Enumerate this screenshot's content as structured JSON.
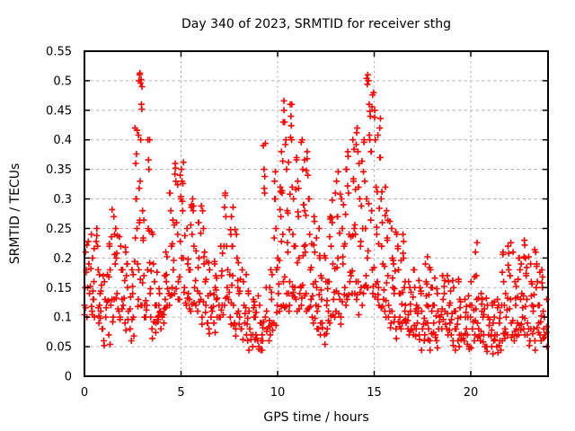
{
  "page": {
    "background_color": "#ffffff",
    "text_color": "#000000"
  },
  "chart_data": {
    "type": "scatter",
    "title": "Day 340 of 2023, SRMTID for receiver sthg",
    "xlabel": "GPS time / hours",
    "ylabel": "SRMTID / TECUs",
    "xlim": [
      0,
      24
    ],
    "ylim": [
      0,
      0.55
    ],
    "xticks": [
      0,
      5,
      10,
      15,
      20
    ],
    "xtick_labels": [
      "0",
      "5",
      "10",
      "15",
      "20"
    ],
    "yticks": [
      0,
      0.05,
      0.1,
      0.15,
      0.2,
      0.25,
      0.3,
      0.35,
      0.4,
      0.45,
      0.5,
      0.55
    ],
    "ytick_labels": [
      "0",
      "0.05",
      "0.1",
      "0.15",
      "0.2",
      "0.25",
      "0.3",
      "0.35",
      "0.4",
      "0.45",
      "0.5",
      "0.55"
    ],
    "grid": true,
    "grid_style": "dashed",
    "grid_color": "#b3b3b3",
    "border_color": "#000000",
    "legend": "none",
    "marker": "plus",
    "marker_color": "#ff0000",
    "marker_size_px": 7,
    "x_jitter_width": 0.2,
    "columns": [
      {
        "x": 0.0,
        "ys": [
          0.12,
          0.15,
          0.1,
          0.18,
          0.21
        ]
      },
      {
        "x": 0.2,
        "ys": [
          0.14,
          0.19,
          0.11,
          0.24
        ]
      },
      {
        "x": 0.4,
        "ys": [
          0.1,
          0.16,
          0.13,
          0.2
        ]
      },
      {
        "x": 0.6,
        "ys": [
          0.12,
          0.09,
          0.18,
          0.22,
          0.25
        ]
      },
      {
        "x": 0.8,
        "ys": [
          0.11,
          0.14,
          0.17,
          0.08
        ]
      },
      {
        "x": 1.0,
        "ys": [
          0.1,
          0.13,
          0.16,
          0.06
        ]
      },
      {
        "x": 1.2,
        "ys": [
          0.12,
          0.18,
          0.22,
          0.07
        ]
      },
      {
        "x": 1.4,
        "ys": [
          0.13,
          0.19,
          0.24,
          0.27,
          0.1
        ]
      },
      {
        "x": 1.6,
        "ys": [
          0.14,
          0.2,
          0.25,
          0.11
        ]
      },
      {
        "x": 1.8,
        "ys": [
          0.13,
          0.18,
          0.22,
          0.1
        ]
      },
      {
        "x": 2.0,
        "ys": [
          0.12,
          0.17,
          0.21,
          0.09
        ]
      },
      {
        "x": 2.2,
        "ys": [
          0.11,
          0.15,
          0.19,
          0.08
        ]
      },
      {
        "x": 2.4,
        "ys": [
          0.1,
          0.14,
          0.18,
          0.06
        ]
      },
      {
        "x": 2.6,
        "ys": [
          0.13,
          0.19,
          0.25,
          0.3,
          0.36,
          0.42
        ]
      },
      {
        "x": 2.8,
        "ys": [
          0.51,
          0.5,
          0.49,
          0.46,
          0.4,
          0.33,
          0.26,
          0.18,
          0.12
        ]
      },
      {
        "x": 3.0,
        "ys": [
          0.12,
          0.17,
          0.23,
          0.28,
          0.1
        ]
      },
      {
        "x": 3.2,
        "ys": [
          0.4,
          0.35,
          0.25,
          0.18,
          0.12
        ]
      },
      {
        "x": 3.4,
        "ys": [
          0.1,
          0.14,
          0.19,
          0.24,
          0.08
        ]
      },
      {
        "x": 3.6,
        "ys": [
          0.09,
          0.12,
          0.16,
          0.1
        ]
      },
      {
        "x": 3.8,
        "ys": [
          0.08,
          0.11,
          0.14,
          0.12
        ]
      },
      {
        "x": 4.0,
        "ys": [
          0.1,
          0.13,
          0.17,
          0.09
        ]
      },
      {
        "x": 4.2,
        "ys": [
          0.12,
          0.16,
          0.21,
          0.14
        ]
      },
      {
        "x": 4.4,
        "ys": [
          0.15,
          0.22,
          0.28,
          0.31,
          0.12
        ]
      },
      {
        "x": 4.6,
        "ys": [
          0.18,
          0.26,
          0.33,
          0.36,
          0.14
        ]
      },
      {
        "x": 4.8,
        "ys": [
          0.16,
          0.24,
          0.3,
          0.34,
          0.13
        ]
      },
      {
        "x": 5.0,
        "ys": [
          0.2,
          0.28,
          0.33,
          0.35,
          0.15
        ]
      },
      {
        "x": 5.2,
        "ys": [
          0.14,
          0.19,
          0.25,
          0.12
        ]
      },
      {
        "x": 5.4,
        "ys": [
          0.13,
          0.18,
          0.24,
          0.29,
          0.11
        ]
      },
      {
        "x": 5.6,
        "ys": [
          0.15,
          0.22,
          0.28,
          0.3,
          0.12
        ]
      },
      {
        "x": 5.8,
        "ys": [
          0.14,
          0.2,
          0.26,
          0.11
        ]
      },
      {
        "x": 6.0,
        "ys": [
          0.13,
          0.19,
          0.25,
          0.28,
          0.1
        ]
      },
      {
        "x": 6.2,
        "ys": [
          0.12,
          0.16,
          0.21,
          0.09
        ]
      },
      {
        "x": 6.4,
        "ys": [
          0.1,
          0.14,
          0.18,
          0.08
        ]
      },
      {
        "x": 6.6,
        "ys": [
          0.11,
          0.15,
          0.19,
          0.09
        ]
      },
      {
        "x": 6.8,
        "ys": [
          0.1,
          0.13,
          0.17,
          0.12
        ]
      },
      {
        "x": 7.0,
        "ys": [
          0.12,
          0.17,
          0.22,
          0.1
        ]
      },
      {
        "x": 7.2,
        "ys": [
          0.15,
          0.22,
          0.27,
          0.31,
          0.12
        ]
      },
      {
        "x": 7.4,
        "ys": [
          0.13,
          0.18,
          0.24,
          0.1
        ]
      },
      {
        "x": 7.6,
        "ys": [
          0.12,
          0.17,
          0.22,
          0.27,
          0.09
        ]
      },
      {
        "x": 7.8,
        "ys": [
          0.11,
          0.15,
          0.2,
          0.24,
          0.08
        ]
      },
      {
        "x": 8.0,
        "ys": [
          0.1,
          0.14,
          0.18,
          0.08
        ]
      },
      {
        "x": 8.2,
        "ys": [
          0.09,
          0.12,
          0.16,
          0.07
        ]
      },
      {
        "x": 8.4,
        "ys": [
          0.08,
          0.11,
          0.14,
          0.06
        ]
      },
      {
        "x": 8.6,
        "ys": [
          0.07,
          0.1,
          0.13,
          0.05
        ]
      },
      {
        "x": 8.8,
        "ys": [
          0.07,
          0.1,
          0.12,
          0.06
        ]
      },
      {
        "x": 9.0,
        "ys": [
          0.06,
          0.09,
          0.12,
          0.05
        ]
      },
      {
        "x": 9.2,
        "ys": [
          0.07,
          0.1,
          0.31,
          0.35,
          0.39,
          0.06
        ]
      },
      {
        "x": 9.4,
        "ys": [
          0.08,
          0.11,
          0.15,
          0.06
        ]
      },
      {
        "x": 9.6,
        "ys": [
          0.09,
          0.13,
          0.18,
          0.07
        ]
      },
      {
        "x": 9.8,
        "ys": [
          0.12,
          0.18,
          0.25,
          0.3,
          0.33,
          0.09
        ]
      },
      {
        "x": 10.0,
        "ys": [
          0.14,
          0.2,
          0.27,
          0.32,
          0.11
        ]
      },
      {
        "x": 10.2,
        "ys": [
          0.16,
          0.24,
          0.31,
          0.38,
          0.43,
          0.45,
          0.12
        ]
      },
      {
        "x": 10.4,
        "ys": [
          0.14,
          0.21,
          0.28,
          0.35,
          0.4,
          0.11
        ]
      },
      {
        "x": 10.6,
        "ys": [
          0.16,
          0.24,
          0.32,
          0.4,
          0.44,
          0.46,
          0.12
        ]
      },
      {
        "x": 10.8,
        "ys": [
          0.15,
          0.22,
          0.3,
          0.37,
          0.13
        ]
      },
      {
        "x": 11.0,
        "ys": [
          0.14,
          0.2,
          0.27,
          0.33,
          0.11
        ]
      },
      {
        "x": 11.2,
        "ys": [
          0.15,
          0.22,
          0.29,
          0.35,
          0.4,
          0.12
        ]
      },
      {
        "x": 11.4,
        "ys": [
          0.14,
          0.21,
          0.28,
          0.34,
          0.38,
          0.11
        ]
      },
      {
        "x": 11.6,
        "ys": [
          0.13,
          0.18,
          0.24,
          0.3,
          0.1
        ]
      },
      {
        "x": 11.8,
        "ys": [
          0.12,
          0.16,
          0.21,
          0.27,
          0.09
        ]
      },
      {
        "x": 12.0,
        "ys": [
          0.11,
          0.15,
          0.2,
          0.25,
          0.08
        ]
      },
      {
        "x": 12.2,
        "ys": [
          0.09,
          0.13,
          0.17,
          0.07
        ]
      },
      {
        "x": 12.4,
        "ys": [
          0.08,
          0.12,
          0.16,
          0.2,
          0.07
        ]
      },
      {
        "x": 12.6,
        "ys": [
          0.11,
          0.16,
          0.22,
          0.27,
          0.09
        ]
      },
      {
        "x": 12.8,
        "ys": [
          0.13,
          0.19,
          0.26,
          0.31,
          0.1
        ]
      },
      {
        "x": 13.0,
        "ys": [
          0.14,
          0.2,
          0.27,
          0.33,
          0.11
        ]
      },
      {
        "x": 13.2,
        "ys": [
          0.13,
          0.19,
          0.25,
          0.3,
          0.1
        ]
      },
      {
        "x": 13.4,
        "ys": [
          0.15,
          0.22,
          0.29,
          0.35,
          0.12
        ]
      },
      {
        "x": 13.6,
        "ys": [
          0.16,
          0.24,
          0.31,
          0.38,
          0.13
        ]
      },
      {
        "x": 13.8,
        "ys": [
          0.17,
          0.25,
          0.33,
          0.4,
          0.14
        ]
      },
      {
        "x": 14.0,
        "ys": [
          0.16,
          0.24,
          0.32,
          0.38,
          0.42,
          0.13
        ]
      },
      {
        "x": 14.2,
        "ys": [
          0.15,
          0.22,
          0.3,
          0.36,
          0.12
        ]
      },
      {
        "x": 14.4,
        "ys": [
          0.17,
          0.25,
          0.33,
          0.4,
          0.14
        ]
      },
      {
        "x": 14.6,
        "ys": [
          0.2,
          0.3,
          0.4,
          0.46,
          0.5,
          0.51,
          0.15
        ]
      },
      {
        "x": 14.8,
        "ys": [
          0.18,
          0.28,
          0.38,
          0.44,
          0.48,
          0.14
        ]
      },
      {
        "x": 15.0,
        "ys": [
          0.16,
          0.24,
          0.32,
          0.4,
          0.45,
          0.13
        ]
      },
      {
        "x": 15.2,
        "ys": [
          0.15,
          0.22,
          0.3,
          0.37,
          0.42,
          0.12
        ]
      },
      {
        "x": 15.4,
        "ys": [
          0.13,
          0.19,
          0.26,
          0.32,
          0.11
        ]
      },
      {
        "x": 15.6,
        "ys": [
          0.12,
          0.17,
          0.23,
          0.28,
          0.1
        ]
      },
      {
        "x": 15.8,
        "ys": [
          0.11,
          0.15,
          0.2,
          0.25,
          0.09
        ]
      },
      {
        "x": 16.0,
        "ys": [
          0.1,
          0.14,
          0.19,
          0.24,
          0.08
        ]
      },
      {
        "x": 16.2,
        "ys": [
          0.1,
          0.14,
          0.18,
          0.22,
          0.08
        ]
      },
      {
        "x": 16.4,
        "ys": [
          0.11,
          0.15,
          0.2,
          0.24,
          0.09
        ]
      },
      {
        "x": 16.6,
        "ys": [
          0.09,
          0.12,
          0.16,
          0.08
        ]
      },
      {
        "x": 16.8,
        "ys": [
          0.08,
          0.11,
          0.15,
          0.07
        ]
      },
      {
        "x": 17.0,
        "ys": [
          0.08,
          0.11,
          0.15,
          0.18,
          0.07
        ]
      },
      {
        "x": 17.2,
        "ys": [
          0.09,
          0.12,
          0.15,
          0.07
        ]
      },
      {
        "x": 17.4,
        "ys": [
          0.08,
          0.11,
          0.14,
          0.06
        ]
      },
      {
        "x": 17.6,
        "ys": [
          0.09,
          0.12,
          0.16,
          0.19,
          0.07
        ]
      },
      {
        "x": 17.8,
        "ys": [
          0.08,
          0.11,
          0.15,
          0.18,
          0.06
        ]
      },
      {
        "x": 18.0,
        "ys": [
          0.09,
          0.12,
          0.15,
          0.07
        ]
      },
      {
        "x": 18.2,
        "ys": [
          0.08,
          0.11,
          0.14,
          0.06
        ]
      },
      {
        "x": 18.4,
        "ys": [
          0.1,
          0.13,
          0.17,
          0.08
        ]
      },
      {
        "x": 18.6,
        "ys": [
          0.11,
          0.14,
          0.17,
          0.08
        ]
      },
      {
        "x": 18.8,
        "ys": [
          0.09,
          0.12,
          0.16,
          0.07
        ]
      },
      {
        "x": 19.0,
        "ys": [
          0.08,
          0.11,
          0.15,
          0.06
        ]
      },
      {
        "x": 19.2,
        "ys": [
          0.08,
          0.11,
          0.16,
          0.06
        ]
      },
      {
        "x": 19.4,
        "ys": [
          0.07,
          0.1,
          0.13,
          0.05
        ]
      },
      {
        "x": 19.6,
        "ys": [
          0.08,
          0.1,
          0.13,
          0.06
        ]
      },
      {
        "x": 19.8,
        "ys": [
          0.07,
          0.1,
          0.12,
          0.05
        ]
      },
      {
        "x": 20.0,
        "ys": [
          0.08,
          0.12,
          0.16,
          0.06
        ]
      },
      {
        "x": 20.2,
        "ys": [
          0.09,
          0.13,
          0.17,
          0.21,
          0.07
        ]
      },
      {
        "x": 20.4,
        "ys": [
          0.08,
          0.11,
          0.14,
          0.06
        ]
      },
      {
        "x": 20.6,
        "ys": [
          0.07,
          0.1,
          0.13,
          0.05
        ]
      },
      {
        "x": 20.8,
        "ys": [
          0.07,
          0.1,
          0.12,
          0.05
        ]
      },
      {
        "x": 21.0,
        "ys": [
          0.06,
          0.09,
          0.12,
          0.05
        ]
      },
      {
        "x": 21.2,
        "ys": [
          0.07,
          0.1,
          0.13,
          0.05
        ]
      },
      {
        "x": 21.4,
        "ys": [
          0.06,
          0.09,
          0.12,
          0.04
        ]
      },
      {
        "x": 21.6,
        "ys": [
          0.08,
          0.12,
          0.16,
          0.21,
          0.06
        ]
      },
      {
        "x": 21.8,
        "ys": [
          0.1,
          0.14,
          0.18,
          0.22,
          0.07
        ]
      },
      {
        "x": 22.0,
        "ys": [
          0.09,
          0.13,
          0.17,
          0.21,
          0.07
        ]
      },
      {
        "x": 22.2,
        "ys": [
          0.08,
          0.12,
          0.16,
          0.06
        ]
      },
      {
        "x": 22.4,
        "ys": [
          0.09,
          0.13,
          0.18,
          0.2,
          0.07
        ]
      },
      {
        "x": 22.6,
        "ys": [
          0.1,
          0.14,
          0.19,
          0.23,
          0.08
        ]
      },
      {
        "x": 22.8,
        "ys": [
          0.09,
          0.13,
          0.17,
          0.2,
          0.07
        ]
      },
      {
        "x": 23.0,
        "ys": [
          0.08,
          0.12,
          0.16,
          0.19,
          0.06
        ]
      },
      {
        "x": 23.2,
        "ys": [
          0.08,
          0.11,
          0.15,
          0.21,
          0.06
        ]
      },
      {
        "x": 23.4,
        "ys": [
          0.09,
          0.12,
          0.16,
          0.19,
          0.07
        ]
      },
      {
        "x": 23.6,
        "ys": [
          0.08,
          0.11,
          0.15,
          0.18,
          0.06
        ]
      },
      {
        "x": 23.8,
        "ys": [
          0.07,
          0.1,
          0.13,
          0.05
        ]
      }
    ]
  }
}
